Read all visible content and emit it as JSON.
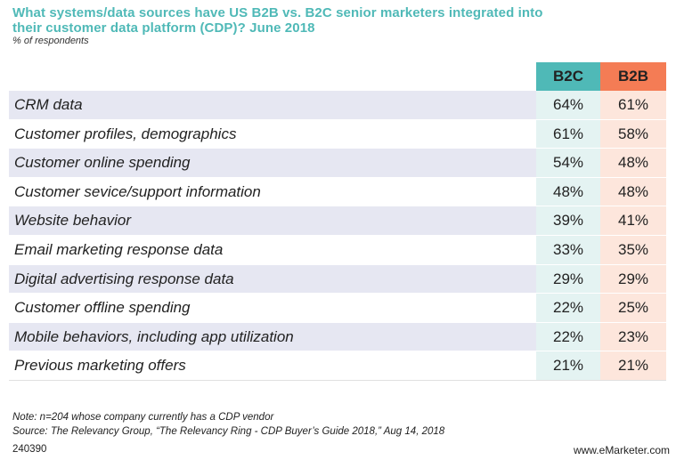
{
  "chart_data": {
    "type": "table",
    "title": "What systems/data sources have US B2B vs. B2C senior marketers integrated into their customer data platform (CDP)? June 2018",
    "subtitle": "% of respondents",
    "columns": [
      "B2C",
      "B2B"
    ],
    "column_colors": {
      "B2C": "#4fb9b7",
      "B2B": "#f47c55"
    },
    "rows": [
      {
        "label": "CRM data",
        "b2c": "64%",
        "b2b": "61%"
      },
      {
        "label": "Customer profiles, demographics",
        "b2c": "61%",
        "b2b": "58%"
      },
      {
        "label": "Customer online spending",
        "b2c": "54%",
        "b2b": "48%"
      },
      {
        "label": "Customer sevice/support information",
        "b2c": "48%",
        "b2b": "48%"
      },
      {
        "label": "Website behavior",
        "b2c": "39%",
        "b2b": "41%"
      },
      {
        "label": "Email marketing response data",
        "b2c": "33%",
        "b2b": "35%"
      },
      {
        "label": "Digital advertising response data",
        "b2c": "29%",
        "b2b": "29%"
      },
      {
        "label": "Customer offline spending",
        "b2c": "22%",
        "b2b": "25%"
      },
      {
        "label": "Mobile behaviors, including app utilization",
        "b2c": "22%",
        "b2b": "23%"
      },
      {
        "label": "Previous marketing offers",
        "b2c": "21%",
        "b2b": "21%"
      }
    ],
    "note": "Note: n=204 whose company currently has a CDP vendor",
    "source": "Source: The Relevancy Group, “The Relevancy Ring - CDP Buyer’s Guide 2018,” Aug 14, 2018",
    "chart_id": "240390",
    "brand": "www.eMarketer.com"
  }
}
